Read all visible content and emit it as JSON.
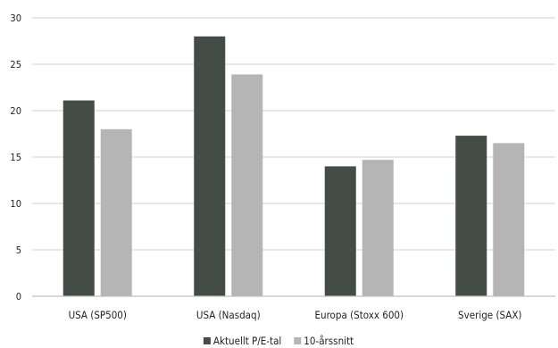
{
  "chart_data": {
    "type": "bar",
    "categories": [
      "USA (SP500)",
      "USA (Nasdaq)",
      "Europa (Stoxx 600)",
      "Sverige (SAX)"
    ],
    "series": [
      {
        "name": "Aktuellt P/E-tal",
        "values": [
          21.1,
          28.0,
          14.0,
          17.3
        ],
        "color": "#434d45"
      },
      {
        "name": "10-årssnitt",
        "values": [
          18.0,
          23.9,
          14.7,
          16.5
        ],
        "color": "#b5b5b5"
      }
    ],
    "y_ticks": [
      "0",
      "5",
      "10",
      "15",
      "20",
      "25",
      "30"
    ],
    "ylim": [
      0,
      30
    ],
    "grid": true,
    "legend_position": "bottom-center",
    "gridline_color": "#d9d9d9",
    "axis_color": "#bfbfbf"
  }
}
